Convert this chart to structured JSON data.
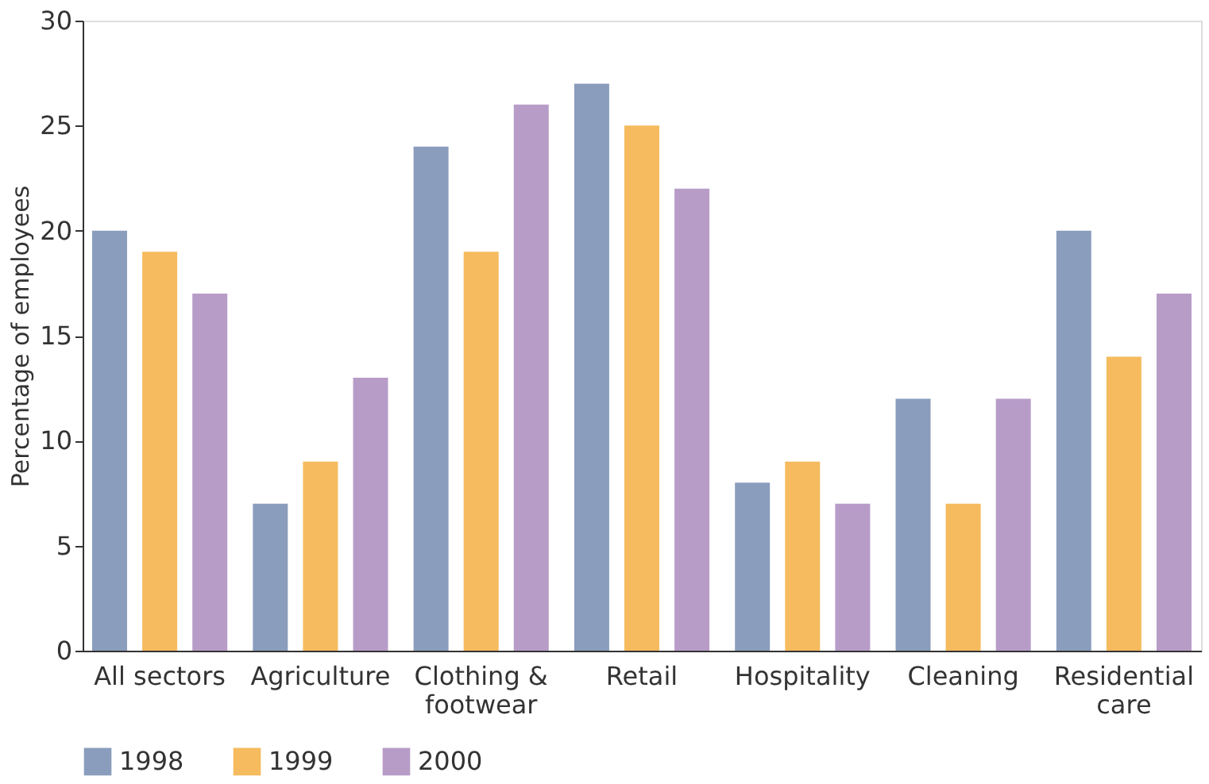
{
  "chart_data": {
    "type": "bar",
    "ylabel": "Percentage of employees",
    "categories": [
      "All sectors",
      "Agriculture",
      "Clothing & footwear",
      "Retail",
      "Hospitality",
      "Cleaning",
      "Residential care"
    ],
    "series": [
      {
        "name": "1998",
        "color": "#8a9dbd",
        "values": [
          20,
          7,
          24,
          27,
          8,
          12,
          20
        ]
      },
      {
        "name": "1999",
        "color": "#f5bb5e",
        "values": [
          19,
          9,
          19,
          25,
          9,
          7,
          14
        ]
      },
      {
        "name": "2000",
        "color": "#b89cc8",
        "values": [
          17,
          13,
          26,
          22,
          7,
          12,
          17
        ]
      }
    ],
    "ylim": [
      0,
      30
    ],
    "yticks": [
      0,
      5,
      10,
      15,
      20,
      25,
      30
    ],
    "grid": false,
    "legend": "bottom"
  }
}
